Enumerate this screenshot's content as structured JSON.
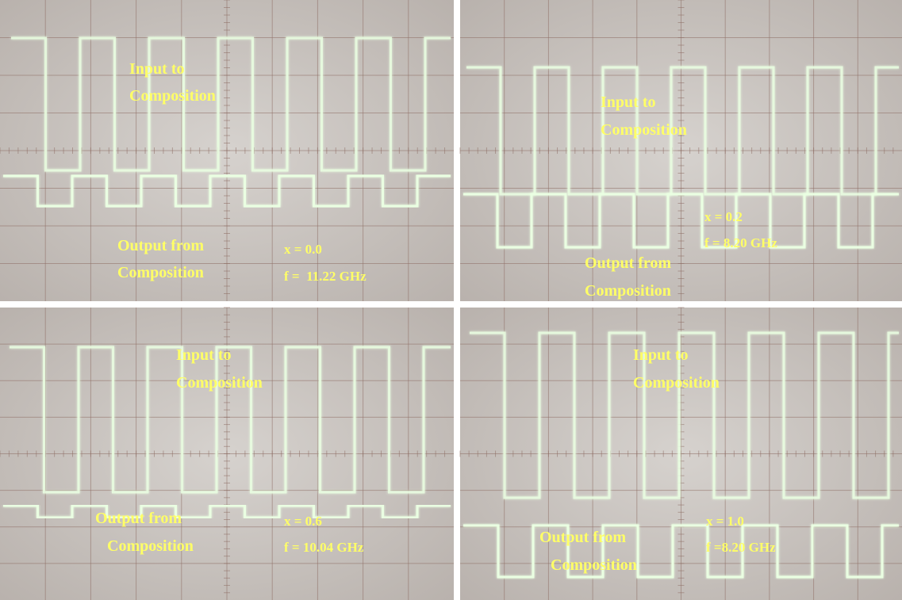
{
  "panels": [
    {
      "input_label": [
        "Input to",
        "Composition"
      ],
      "output_label": [
        "Output from",
        "Composition"
      ],
      "x_label": "x = 0.0",
      "f_label": "f =  11.22 GHz"
    },
    {
      "input_label": [
        "Input to",
        "Composition"
      ],
      "output_label": [
        "Output from",
        "Composition"
      ],
      "x_label": "x = 0.2",
      "f_label": "f = 8.20 GHz"
    },
    {
      "input_label": [
        "Input to",
        "Composition"
      ],
      "output_label": [
        "Output from",
        "Composition"
      ],
      "x_label": "x = 0.6",
      "f_label": "f = 10.04 GHz"
    },
    {
      "input_label": [
        "Input to",
        "Composition"
      ],
      "output_label": [
        "Output from",
        "Composition"
      ],
      "x_label": "x = 1.0",
      "f_label": "f =8.20 GHz"
    }
  ]
}
